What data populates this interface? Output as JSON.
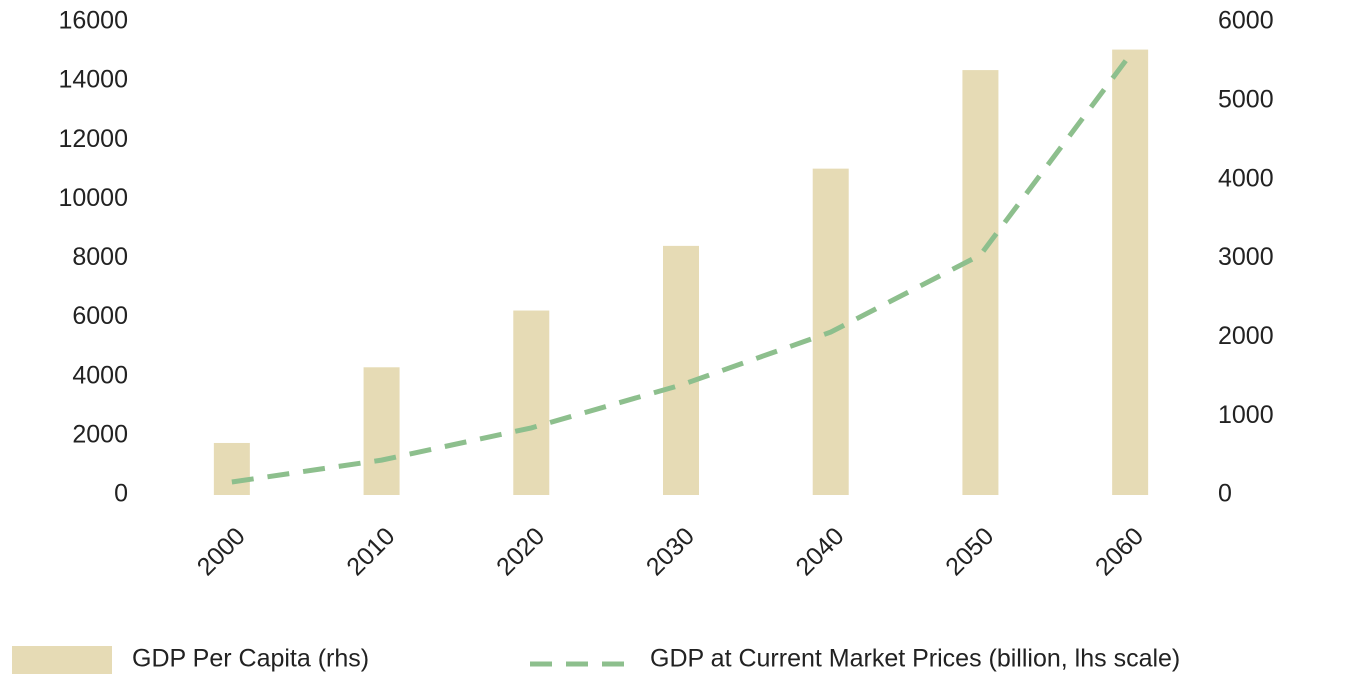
{
  "chart_data": {
    "type": "bar_line",
    "categories": [
      "2000",
      "2010",
      "2020",
      "2030",
      "2040",
      "2050",
      "2060"
    ],
    "series": [
      {
        "name": "GDP Per Capita (rhs)",
        "type": "bar",
        "axis": "y2",
        "color": "#e6dbb5",
        "values": [
          660,
          1620,
          2340,
          3160,
          4140,
          5390,
          5650
        ]
      },
      {
        "name": "GDP at Current  Market Prices (billion, lhs scale)",
        "type": "line",
        "axis": "y",
        "color": "#8dbf8d",
        "dashed": true,
        "values": [
          440,
          1180,
          2270,
          3720,
          5510,
          8120,
          14890
        ]
      }
    ],
    "ylim": [
      0,
      16000
    ],
    "yticks": [
      0,
      2000,
      4000,
      6000,
      8000,
      10000,
      12000,
      14000,
      16000
    ],
    "y2lim": [
      0,
      6000
    ],
    "y2ticks": [
      0,
      1000,
      2000,
      3000,
      4000,
      5000,
      6000
    ],
    "grid": false,
    "legend": "bottom"
  }
}
